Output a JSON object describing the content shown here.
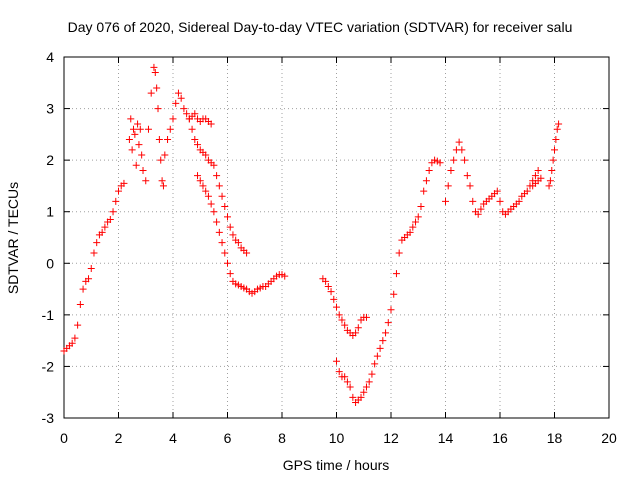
{
  "chart_data": {
    "type": "scatter",
    "title": "Day 076 of 2020, Sidereal Day-to-day VTEC variation (SDTVAR) for receiver salu",
    "xlabel": "GPS time / hours",
    "ylabel": "SDTVAR / TECUs",
    "xlim": [
      0,
      20
    ],
    "ylim": [
      -3,
      4
    ],
    "xticks": [
      0,
      2,
      4,
      6,
      8,
      10,
      12,
      14,
      16,
      18,
      20
    ],
    "yticks": [
      -3,
      -2,
      -1,
      0,
      1,
      2,
      3,
      4
    ],
    "grid": true,
    "marker": "+",
    "color": "#ff0000",
    "series": [
      {
        "name": "seg1",
        "x": [
          0,
          0.1,
          0.2,
          0.3,
          0.4,
          0.5,
          0.6,
          0.7,
          0.8,
          0.9,
          1.0,
          1.1,
          1.2,
          1.3,
          1.4,
          1.5,
          1.6,
          1.7,
          1.8,
          1.9,
          2.0,
          2.1,
          2.2
        ],
        "y": [
          -1.7,
          -1.65,
          -1.6,
          -1.55,
          -1.45,
          -1.2,
          -0.8,
          -0.5,
          -0.35,
          -0.3,
          -0.1,
          0.2,
          0.4,
          0.55,
          0.6,
          0.7,
          0.8,
          0.85,
          1.0,
          1.2,
          1.4,
          1.5,
          1.55
        ]
      },
      {
        "name": "seg2",
        "x": [
          2.4,
          2.45,
          2.5,
          2.55,
          2.6,
          2.65,
          2.7,
          2.75,
          2.8,
          2.85,
          2.9,
          3.0
        ],
        "y": [
          2.4,
          2.8,
          2.2,
          2.6,
          2.5,
          1.9,
          2.7,
          2.3,
          2.6,
          2.1,
          1.8,
          1.6
        ]
      },
      {
        "name": "seg3",
        "x": [
          3.1,
          3.2,
          3.3,
          3.35,
          3.4,
          3.45,
          3.5,
          3.55,
          3.6,
          3.65,
          3.7,
          3.8,
          3.9,
          4.0,
          4.1,
          4.2,
          4.3,
          4.4,
          4.5,
          4.6,
          4.7,
          4.8,
          4.9,
          5.0,
          5.1,
          5.2,
          5.3,
          5.4
        ],
        "y": [
          2.6,
          3.3,
          3.8,
          3.7,
          3.4,
          3.0,
          2.4,
          2.0,
          1.6,
          1.5,
          2.1,
          2.4,
          2.6,
          2.8,
          3.1,
          3.3,
          3.2,
          3.0,
          2.9,
          2.8,
          2.85,
          2.9,
          2.8,
          2.75,
          2.8,
          2.8,
          2.75,
          2.7
        ]
      },
      {
        "name": "seg4",
        "x": [
          4.6,
          4.7,
          4.8,
          4.9,
          5.0,
          5.1,
          5.2,
          5.3,
          5.4,
          5.5,
          5.6,
          5.7,
          5.8,
          5.9,
          6.0,
          6.1,
          6.2,
          6.3,
          6.4,
          6.5,
          6.6,
          6.7
        ],
        "y": [
          2.8,
          2.6,
          2.4,
          2.3,
          2.2,
          2.15,
          2.1,
          2.0,
          1.95,
          1.9,
          1.7,
          1.5,
          1.3,
          1.1,
          0.9,
          0.7,
          0.55,
          0.45,
          0.4,
          0.3,
          0.25,
          0.2
        ]
      },
      {
        "name": "seg5",
        "x": [
          4.9,
          5.0,
          5.1,
          5.2,
          5.3,
          5.4,
          5.5,
          5.6,
          5.7,
          5.8,
          5.9,
          6.0,
          6.1,
          6.2,
          6.3,
          6.4,
          6.5,
          6.6,
          6.7,
          6.8,
          6.9,
          7.0,
          7.1,
          7.2,
          7.3,
          7.4,
          7.5,
          7.6,
          7.7,
          7.8,
          7.9,
          8.0,
          8.1
        ],
        "y": [
          1.7,
          1.6,
          1.5,
          1.4,
          1.3,
          1.15,
          1.0,
          0.8,
          0.6,
          0.4,
          0.2,
          0.0,
          -0.2,
          -0.35,
          -0.4,
          -0.42,
          -0.45,
          -0.48,
          -0.5,
          -0.55,
          -0.58,
          -0.55,
          -0.5,
          -0.48,
          -0.45,
          -0.45,
          -0.4,
          -0.35,
          -0.3,
          -0.25,
          -0.22,
          -0.22,
          -0.25
        ]
      },
      {
        "name": "seg6",
        "x": [
          9.5,
          9.6,
          9.7,
          9.8,
          9.9,
          10.0,
          10.1,
          10.2,
          10.3,
          10.4,
          10.5,
          10.6,
          10.7,
          10.8,
          10.9,
          11.0,
          11.1
        ],
        "y": [
          -0.3,
          -0.35,
          -0.45,
          -0.55,
          -0.7,
          -0.85,
          -1.0,
          -1.1,
          -1.2,
          -1.3,
          -1.35,
          -1.4,
          -1.35,
          -1.25,
          -1.1,
          -1.05,
          -1.05
        ]
      },
      {
        "name": "seg7",
        "x": [
          10.0,
          10.1,
          10.2,
          10.3,
          10.4,
          10.5,
          10.6,
          10.7,
          10.8,
          10.9,
          11.0,
          11.1,
          11.2,
          11.3,
          11.4,
          11.5,
          11.6,
          11.7,
          11.8,
          11.9,
          12.0,
          12.1,
          12.2,
          12.3,
          12.4,
          12.5,
          12.6,
          12.7,
          12.8,
          12.9,
          13.0,
          13.1,
          13.2,
          13.3,
          13.4,
          13.5,
          13.6,
          13.7,
          13.8
        ],
        "y": [
          -1.9,
          -2.1,
          -2.2,
          -2.2,
          -2.3,
          -2.4,
          -2.6,
          -2.7,
          -2.65,
          -2.6,
          -2.5,
          -2.4,
          -2.3,
          -2.15,
          -1.95,
          -1.8,
          -1.65,
          -1.5,
          -1.35,
          -1.15,
          -0.9,
          -0.6,
          -0.2,
          0.2,
          0.45,
          0.5,
          0.55,
          0.6,
          0.7,
          0.8,
          0.9,
          1.1,
          1.4,
          1.6,
          1.8,
          1.95,
          2.0,
          1.98,
          1.95
        ]
      },
      {
        "name": "seg8",
        "x": [
          14.0,
          14.1,
          14.2,
          14.3,
          14.4,
          14.5,
          14.6,
          14.7,
          14.8,
          14.9,
          15.0,
          15.1,
          15.2,
          15.3,
          15.4,
          15.5,
          15.6,
          15.7,
          15.8,
          15.9,
          16.0,
          16.1,
          16.2,
          16.3,
          16.4,
          16.5,
          16.6,
          16.7,
          16.8,
          16.9,
          17.0,
          17.1,
          17.2,
          17.3,
          17.4
        ],
        "y": [
          1.2,
          1.5,
          1.8,
          2.0,
          2.2,
          2.35,
          2.2,
          2.0,
          1.7,
          1.5,
          1.2,
          1.0,
          0.95,
          1.05,
          1.15,
          1.2,
          1.25,
          1.3,
          1.35,
          1.4,
          1.2,
          1.0,
          0.95,
          1.0,
          1.05,
          1.1,
          1.15,
          1.2,
          1.3,
          1.35,
          1.4,
          1.5,
          1.6,
          1.7,
          1.8
        ]
      },
      {
        "name": "seg9",
        "x": [
          17.2,
          17.3,
          17.4,
          17.5
        ],
        "y": [
          1.5,
          1.55,
          1.6,
          1.65
        ]
      },
      {
        "name": "seg10",
        "x": [
          17.8,
          17.85,
          17.9,
          17.95,
          18.0,
          18.05,
          18.1,
          18.15
        ],
        "y": [
          1.5,
          1.6,
          1.8,
          2.0,
          2.2,
          2.4,
          2.6,
          2.7
        ]
      }
    ]
  }
}
